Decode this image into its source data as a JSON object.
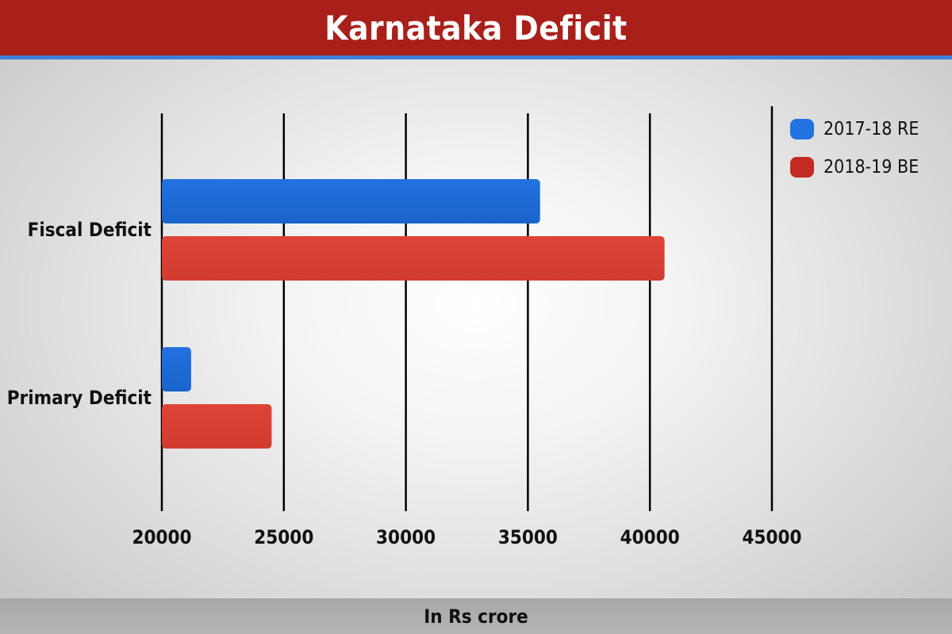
{
  "header": {
    "title": "Karnataka Deficit"
  },
  "footer": {
    "unit_label": "In Rs crore"
  },
  "chart_data": {
    "type": "bar",
    "orientation": "horizontal",
    "title": "Karnataka Deficit",
    "xlabel": "In Rs crore",
    "ylabel": "",
    "categories": [
      "Fiscal Deficit",
      "Primary Deficit"
    ],
    "series": [
      {
        "name": "2017-18 RE",
        "color": "#2272e0",
        "values": [
          35500,
          21200
        ]
      },
      {
        "name": "2018-19 BE",
        "color": "#dd4438",
        "values": [
          40600,
          24500
        ]
      }
    ],
    "xlim": [
      20000,
      45000
    ],
    "xticks": [
      "20000",
      "25000",
      "30000",
      "35000",
      "40000",
      "45000"
    ],
    "grid": true,
    "legend_position": "top-right"
  }
}
